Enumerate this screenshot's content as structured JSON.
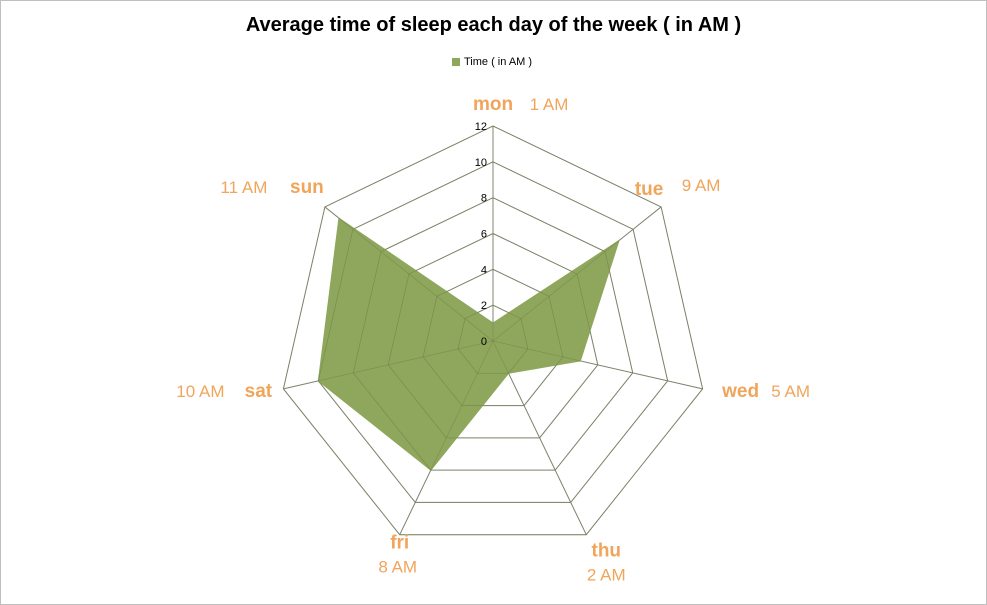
{
  "chart_data": {
    "type": "radar",
    "title": "Average time of sleep each day of the week ( in AM )",
    "categories": [
      "mon",
      "tue",
      "wed",
      "thu",
      "fri",
      "sat",
      "sun"
    ],
    "category_annotations": [
      "1 AM",
      "9 AM",
      "5 AM",
      "2 AM",
      "8 AM",
      "10 AM",
      "11 AM"
    ],
    "series": [
      {
        "name": "Time ( in AM )",
        "values": [
          1,
          9,
          5,
          2,
          8,
          10,
          11
        ],
        "color": "#8fa75d"
      }
    ],
    "r_ticks": [
      0,
      2,
      4,
      6,
      8,
      10,
      12
    ],
    "rlim": [
      0,
      12
    ],
    "grid": true,
    "legend_position": "top",
    "label_color": "#f0a55b"
  }
}
